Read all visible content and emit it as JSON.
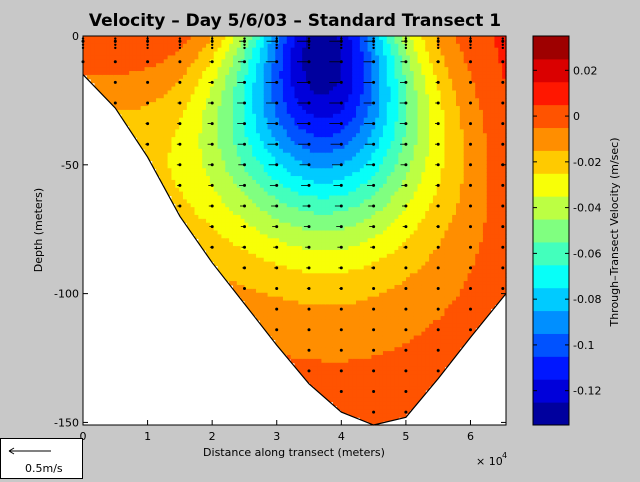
{
  "chart_data": {
    "type": "heatmap",
    "title": "Velocity – Day 5/6/03 – Standard Transect 1",
    "xlabel": "Distance along transect (meters)",
    "ylabel": "Depth (meters)",
    "x_multiplier": "× 10",
    "x_multiplier_exp": "4",
    "xlim": [
      0,
      65500
    ],
    "ylim": [
      -151,
      0
    ],
    "xticks": [
      0,
      10000,
      20000,
      30000,
      40000,
      50000,
      60000
    ],
    "xtick_labels": [
      "0",
      "1",
      "2",
      "3",
      "4",
      "5",
      "6"
    ],
    "yticks": [
      0,
      -50,
      -100,
      -150
    ],
    "ytick_labels": [
      "0",
      "-50",
      "-100",
      "-150"
    ],
    "colorbar": {
      "label": "Through–Transect Velocity (m/sec)",
      "min": -0.135,
      "max": 0.035,
      "step": 0.01,
      "ticks": [
        0.02,
        0,
        -0.02,
        -0.04,
        -0.06,
        -0.08,
        -0.1,
        -0.12
      ],
      "tick_labels": [
        "0.02",
        "0",
        "-0.02",
        "-0.04",
        "-0.06",
        "-0.08",
        "-0.1",
        "-0.12"
      ]
    },
    "bottom_profile": {
      "x": [
        0,
        5000,
        10000,
        15000,
        20000,
        25000,
        30000,
        35000,
        40000,
        45000,
        50000,
        55000,
        60000,
        65500
      ],
      "depth": [
        -15,
        -28,
        -47,
        -70,
        -88,
        -104,
        -120,
        -135,
        -146,
        -151,
        -148,
        -133,
        -117,
        -100
      ]
    },
    "stations_x": [
      0,
      5000,
      10000,
      15000,
      20000,
      25000,
      30000,
      35000,
      40000,
      45000,
      50000,
      55000,
      60000,
      65000
    ],
    "field": {
      "core_x": 37000,
      "core_depth": 8,
      "core_velocity": -0.13,
      "surface_width_m": 12000,
      "depth_scale_m": 65,
      "left_edge_velocity": 0.0,
      "right_edge_velocity": 0.005
    },
    "scale_arrow": {
      "label": "0.5m/s"
    }
  }
}
